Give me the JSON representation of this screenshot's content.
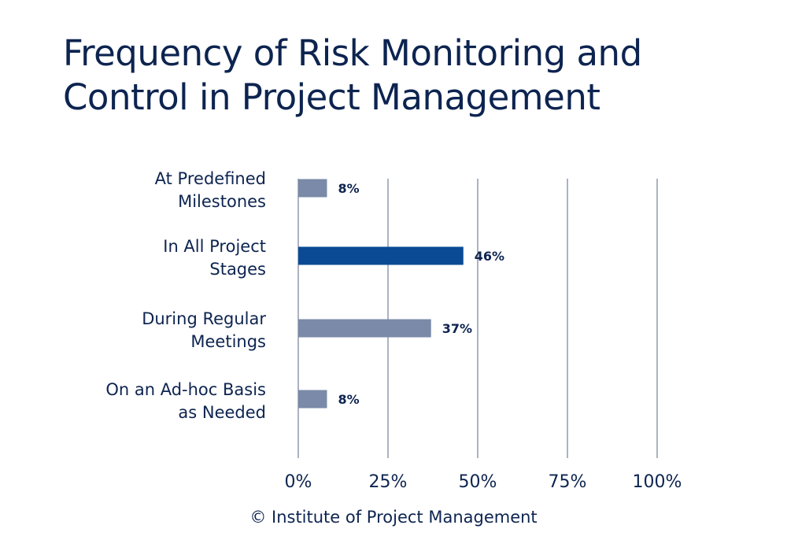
{
  "chart_data": {
    "type": "bar",
    "orientation": "horizontal",
    "title": "Frequency of Risk Monitoring and Control in Project Management",
    "categories": [
      [
        "At Predefined",
        "Milestones"
      ],
      [
        "In All Project",
        "Stages"
      ],
      [
        "During Regular",
        "Meetings"
      ],
      [
        "On an Ad-hoc Basis",
        "as Needed"
      ]
    ],
    "values": [
      8,
      46,
      37,
      8
    ],
    "value_labels": [
      "8%",
      "46%",
      "37%",
      "8%"
    ],
    "bar_colors": [
      "#7a8aa8",
      "#0a4a94",
      "#7a8aa8",
      "#7a8aa8"
    ],
    "xticks": [
      "0%",
      "25%",
      "50%",
      "75%",
      "100%"
    ],
    "xtick_values": [
      0,
      25,
      50,
      75,
      100
    ],
    "xlim": [
      0,
      100
    ],
    "grid": true,
    "legend": "none"
  },
  "footer": "© Institute of Project Management",
  "colors": {
    "text": "#0d2450",
    "grid": "#59677f"
  }
}
